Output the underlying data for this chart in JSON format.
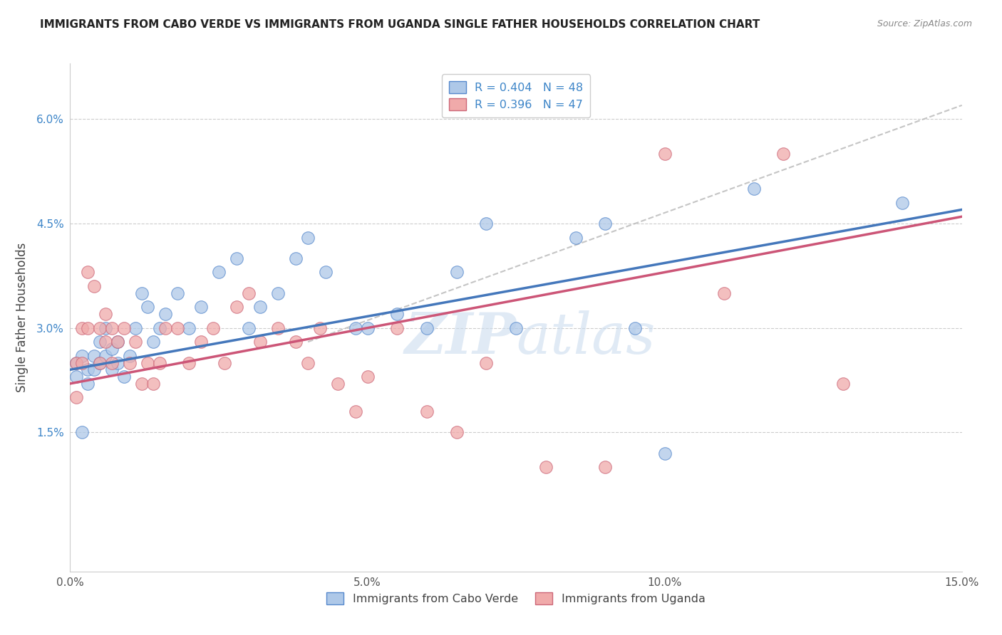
{
  "title": "IMMIGRANTS FROM CABO VERDE VS IMMIGRANTS FROM UGANDA SINGLE FATHER HOUSEHOLDS CORRELATION CHART",
  "source": "Source: ZipAtlas.com",
  "ylabel": "Single Father Households",
  "xlim": [
    0,
    0.15
  ],
  "ylim": [
    -0.005,
    0.068
  ],
  "xticks": [
    0.0,
    0.05,
    0.1,
    0.15
  ],
  "yticks": [
    0.015,
    0.03,
    0.045,
    0.06
  ],
  "ytick_labels": [
    "1.5%",
    "3.0%",
    "4.5%",
    "6.0%"
  ],
  "xtick_labels": [
    "0.0%",
    "5.0%",
    "10.0%",
    "15.0%"
  ],
  "legend_r1": "R = 0.404",
  "legend_n1": "N = 48",
  "legend_r2": "R = 0.396",
  "legend_n2": "N = 47",
  "color_blue_fill": "#aec8e8",
  "color_blue_edge": "#5588cc",
  "color_pink_fill": "#f0aaaa",
  "color_pink_edge": "#cc6677",
  "color_blue_line": "#4477bb",
  "color_pink_line": "#cc5577",
  "color_dash": "#bbbbbb",
  "watermark_color": "#ccddef",
  "cabo_verde_x": [
    0.001,
    0.001,
    0.002,
    0.002,
    0.003,
    0.003,
    0.004,
    0.004,
    0.005,
    0.005,
    0.006,
    0.006,
    0.007,
    0.007,
    0.008,
    0.008,
    0.009,
    0.01,
    0.011,
    0.012,
    0.013,
    0.014,
    0.015,
    0.016,
    0.018,
    0.02,
    0.022,
    0.025,
    0.028,
    0.03,
    0.032,
    0.035,
    0.038,
    0.04,
    0.043,
    0.048,
    0.05,
    0.055,
    0.06,
    0.065,
    0.07,
    0.075,
    0.085,
    0.09,
    0.095,
    0.1,
    0.115,
    0.14
  ],
  "cabo_verde_y": [
    0.025,
    0.023,
    0.015,
    0.026,
    0.022,
    0.024,
    0.026,
    0.024,
    0.028,
    0.025,
    0.03,
    0.026,
    0.027,
    0.024,
    0.028,
    0.025,
    0.023,
    0.026,
    0.03,
    0.035,
    0.033,
    0.028,
    0.03,
    0.032,
    0.035,
    0.03,
    0.033,
    0.038,
    0.04,
    0.03,
    0.033,
    0.035,
    0.04,
    0.043,
    0.038,
    0.03,
    0.03,
    0.032,
    0.03,
    0.038,
    0.045,
    0.03,
    0.043,
    0.045,
    0.03,
    0.012,
    0.05,
    0.048
  ],
  "uganda_x": [
    0.001,
    0.001,
    0.002,
    0.002,
    0.003,
    0.003,
    0.004,
    0.005,
    0.005,
    0.006,
    0.006,
    0.007,
    0.007,
    0.008,
    0.009,
    0.01,
    0.011,
    0.012,
    0.013,
    0.014,
    0.015,
    0.016,
    0.018,
    0.02,
    0.022,
    0.024,
    0.026,
    0.028,
    0.03,
    0.032,
    0.035,
    0.038,
    0.04,
    0.042,
    0.045,
    0.048,
    0.05,
    0.055,
    0.06,
    0.065,
    0.07,
    0.08,
    0.09,
    0.1,
    0.11,
    0.12,
    0.13
  ],
  "uganda_y": [
    0.02,
    0.025,
    0.03,
    0.025,
    0.038,
    0.03,
    0.036,
    0.025,
    0.03,
    0.032,
    0.028,
    0.03,
    0.025,
    0.028,
    0.03,
    0.025,
    0.028,
    0.022,
    0.025,
    0.022,
    0.025,
    0.03,
    0.03,
    0.025,
    0.028,
    0.03,
    0.025,
    0.033,
    0.035,
    0.028,
    0.03,
    0.028,
    0.025,
    0.03,
    0.022,
    0.018,
    0.023,
    0.03,
    0.018,
    0.015,
    0.025,
    0.01,
    0.01,
    0.055,
    0.035,
    0.055,
    0.022
  ],
  "blue_line_x0": 0.0,
  "blue_line_y0": 0.024,
  "blue_line_x1": 0.15,
  "blue_line_y1": 0.047,
  "pink_line_x0": 0.0,
  "pink_line_y0": 0.022,
  "pink_line_x1": 0.15,
  "pink_line_y1": 0.046,
  "dash_line_x0": 0.04,
  "dash_line_y0": 0.028,
  "dash_line_x1": 0.15,
  "dash_line_y1": 0.062
}
